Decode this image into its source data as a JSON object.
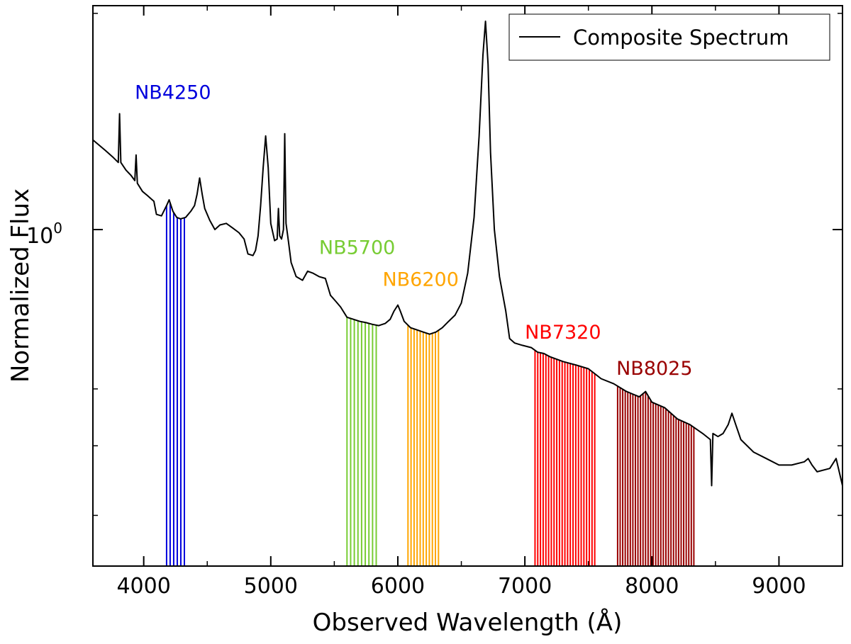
{
  "chart_data": {
    "type": "line",
    "xlabel": "Observed Wavelength (Å)",
    "ylabel": "Normalized Flux",
    "xlim": [
      3600,
      9500
    ],
    "ylim": [
      0.34,
      2.05
    ],
    "yscale": "log",
    "x_ticks": [
      4000,
      5000,
      6000,
      7000,
      8000,
      9000
    ],
    "x_tick_labels": [
      "4000",
      "5000",
      "6000",
      "7000",
      "8000",
      "9000"
    ],
    "y_tick_label": {
      "base": "10",
      "exponent": "0",
      "value": 1.0
    },
    "legend": {
      "position": "top-right",
      "entries": [
        "Composite Spectrum"
      ]
    },
    "grid": false,
    "series": [
      {
        "name": "Composite Spectrum",
        "color": "#000000",
        "points": [
          [
            3600,
            1.333
          ],
          [
            3700,
            1.288
          ],
          [
            3760,
            1.26
          ],
          [
            3800,
            1.24
          ],
          [
            3810,
            1.45
          ],
          [
            3820,
            1.24
          ],
          [
            3860,
            1.21
          ],
          [
            3900,
            1.19
          ],
          [
            3930,
            1.17
          ],
          [
            3940,
            1.27
          ],
          [
            3950,
            1.16
          ],
          [
            3990,
            1.13
          ],
          [
            4030,
            1.115
          ],
          [
            4080,
            1.095
          ],
          [
            4100,
            1.05
          ],
          [
            4140,
            1.045
          ],
          [
            4180,
            1.08
          ],
          [
            4200,
            1.1
          ],
          [
            4230,
            1.06
          ],
          [
            4260,
            1.04
          ],
          [
            4290,
            1.035
          ],
          [
            4330,
            1.04
          ],
          [
            4370,
            1.06
          ],
          [
            4400,
            1.08
          ],
          [
            4420,
            1.12
          ],
          [
            4440,
            1.18
          ],
          [
            4460,
            1.12
          ],
          [
            4480,
            1.07
          ],
          [
            4520,
            1.03
          ],
          [
            4560,
            1.0
          ],
          [
            4600,
            1.015
          ],
          [
            4650,
            1.02
          ],
          [
            4700,
            1.005
          ],
          [
            4750,
            0.99
          ],
          [
            4790,
            0.97
          ],
          [
            4820,
            0.925
          ],
          [
            4860,
            0.92
          ],
          [
            4880,
            0.935
          ],
          [
            4900,
            0.98
          ],
          [
            4920,
            1.08
          ],
          [
            4940,
            1.22
          ],
          [
            4960,
            1.35
          ],
          [
            4980,
            1.22
          ],
          [
            5000,
            1.02
          ],
          [
            5030,
            0.965
          ],
          [
            5050,
            0.97
          ],
          [
            5060,
            1.07
          ],
          [
            5070,
            0.98
          ],
          [
            5085,
            0.97
          ],
          [
            5100,
            1.0
          ],
          [
            5110,
            1.36
          ],
          [
            5120,
            1.02
          ],
          [
            5140,
            0.96
          ],
          [
            5160,
            0.9
          ],
          [
            5200,
            0.86
          ],
          [
            5250,
            0.85
          ],
          [
            5290,
            0.875
          ],
          [
            5330,
            0.87
          ],
          [
            5380,
            0.86
          ],
          [
            5430,
            0.855
          ],
          [
            5470,
            0.81
          ],
          [
            5510,
            0.795
          ],
          [
            5550,
            0.78
          ],
          [
            5600,
            0.755
          ],
          [
            5650,
            0.75
          ],
          [
            5700,
            0.745
          ],
          [
            5750,
            0.742
          ],
          [
            5800,
            0.738
          ],
          [
            5850,
            0.735
          ],
          [
            5900,
            0.74
          ],
          [
            5940,
            0.75
          ],
          [
            5970,
            0.77
          ],
          [
            6000,
            0.785
          ],
          [
            6020,
            0.77
          ],
          [
            6050,
            0.745
          ],
          [
            6100,
            0.73
          ],
          [
            6150,
            0.725
          ],
          [
            6200,
            0.72
          ],
          [
            6250,
            0.715
          ],
          [
            6300,
            0.72
          ],
          [
            6350,
            0.73
          ],
          [
            6400,
            0.745
          ],
          [
            6450,
            0.76
          ],
          [
            6500,
            0.79
          ],
          [
            6550,
            0.87
          ],
          [
            6600,
            1.04
          ],
          [
            6640,
            1.35
          ],
          [
            6670,
            1.75
          ],
          [
            6690,
            1.95
          ],
          [
            6710,
            1.7
          ],
          [
            6730,
            1.28
          ],
          [
            6760,
            1.0
          ],
          [
            6800,
            0.86
          ],
          [
            6850,
            0.77
          ],
          [
            6880,
            0.705
          ],
          [
            6920,
            0.695
          ],
          [
            6980,
            0.69
          ],
          [
            7050,
            0.685
          ],
          [
            7100,
            0.675
          ],
          [
            7150,
            0.672
          ],
          [
            7200,
            0.665
          ],
          [
            7300,
            0.655
          ],
          [
            7400,
            0.648
          ],
          [
            7500,
            0.64
          ],
          [
            7550,
            0.63
          ],
          [
            7600,
            0.62
          ],
          [
            7700,
            0.61
          ],
          [
            7800,
            0.595
          ],
          [
            7900,
            0.585
          ],
          [
            7950,
            0.595
          ],
          [
            8000,
            0.575
          ],
          [
            8100,
            0.565
          ],
          [
            8200,
            0.545
          ],
          [
            8300,
            0.535
          ],
          [
            8400,
            0.52
          ],
          [
            8460,
            0.51
          ],
          [
            8470,
            0.44
          ],
          [
            8480,
            0.52
          ],
          [
            8520,
            0.515
          ],
          [
            8560,
            0.52
          ],
          [
            8600,
            0.535
          ],
          [
            8630,
            0.555
          ],
          [
            8660,
            0.535
          ],
          [
            8700,
            0.51
          ],
          [
            8800,
            0.49
          ],
          [
            8900,
            0.48
          ],
          [
            9000,
            0.47
          ],
          [
            9100,
            0.47
          ],
          [
            9200,
            0.475
          ],
          [
            9230,
            0.48
          ],
          [
            9260,
            0.47
          ],
          [
            9300,
            0.46
          ],
          [
            9400,
            0.465
          ],
          [
            9450,
            0.48
          ],
          [
            9500,
            0.44
          ]
        ]
      }
    ],
    "filter_bands": [
      {
        "label": "NB4250",
        "color": "#0000dd",
        "start": 4180,
        "end": 4320,
        "count": 6,
        "label_x": 3930,
        "label_y": 1.52
      },
      {
        "label": "NB5700",
        "color": "#77cc33",
        "start": 5600,
        "end": 5830,
        "count": 9,
        "label_x": 5380,
        "label_y": 0.925
      },
      {
        "label": "NB6200",
        "color": "#ffa500",
        "start": 6080,
        "end": 6320,
        "count": 11,
        "label_x": 5880,
        "label_y": 0.835
      },
      {
        "label": "NB7320",
        "color": "#ff0000",
        "start": 7080,
        "end": 7550,
        "count": 23,
        "label_x": 7000,
        "label_y": 0.705
      },
      {
        "label": "NB8025",
        "color": "#990000",
        "start": 7730,
        "end": 8330,
        "count": 31,
        "label_x": 7720,
        "label_y": 0.628
      }
    ]
  }
}
